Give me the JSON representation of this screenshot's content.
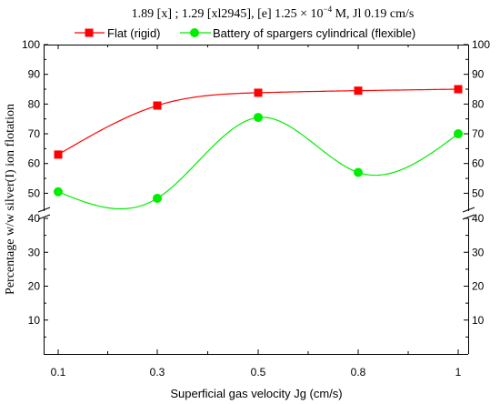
{
  "chart_data": {
    "type": "scatter",
    "title": "1.89 [x] ; 1.29 [xl2945], [e] 1.25 × 10",
    "title_exp": "−4",
    "title_tail": " M, Jl 0.19 cm/s",
    "xlabel": "Superficial gas velocity Jg (cm/s)",
    "ylabel": "Percentage w/w silver(I) ion flotation",
    "x_categories": [
      "0.1",
      "0.3",
      "0.5",
      "0.8",
      "1"
    ],
    "y_ticks_upper": [
      "50",
      "60",
      "70",
      "80",
      "90",
      "100"
    ],
    "y_ticks_lower": [
      "10",
      "20",
      "30",
      "40"
    ],
    "ylim_upper": [
      44,
      100
    ],
    "ylim_lower": [
      0,
      40
    ],
    "axis_break": true,
    "grid": false,
    "legend_position": "top",
    "series": [
      {
        "name": "Flat (rigid)",
        "marker": "square",
        "color": "#ff0000",
        "values": [
          63,
          79.5,
          83.8,
          84.5,
          85
        ]
      },
      {
        "name": "Battery of spargers cylindrical (flexible)",
        "marker": "circle",
        "color": "#00ee00",
        "values": [
          50.5,
          48.3,
          75.5,
          57,
          70
        ]
      }
    ]
  }
}
